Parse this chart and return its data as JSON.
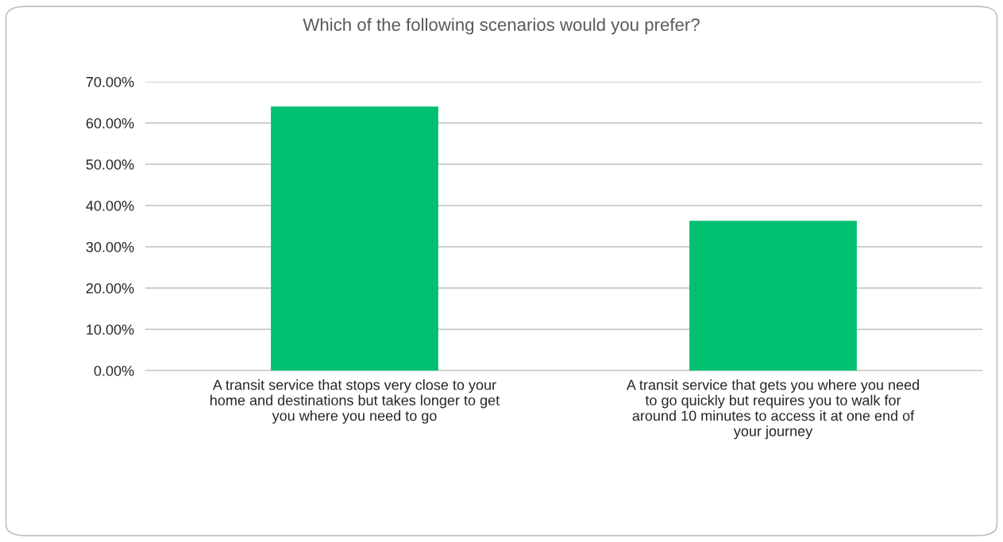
{
  "chart_data": {
    "type": "bar",
    "title": "Which of the following scenarios would you prefer?",
    "categories": [
      "A transit service that stops very close to your\nhome and destinations but takes longer to get\nyou where you need to go",
      "A transit service that gets you where you need\nto go quickly but requires you to walk for\naround 10 minutes to access it at one end of\nyour journey"
    ],
    "values": [
      64.0,
      36.3
    ],
    "color": "#00c070",
    "ylim": [
      0,
      70
    ],
    "yticks": [
      {
        "value": 0,
        "label": "0.00%"
      },
      {
        "value": 10,
        "label": "10.00%"
      },
      {
        "value": 20,
        "label": "20.00%"
      },
      {
        "value": 30,
        "label": "30.00%"
      },
      {
        "value": 40,
        "label": "40.00%"
      },
      {
        "value": 50,
        "label": "50.00%"
      },
      {
        "value": 60,
        "label": "60.00%"
      },
      {
        "value": 70,
        "label": "70.00%"
      }
    ],
    "grid": "y",
    "legend": false
  }
}
